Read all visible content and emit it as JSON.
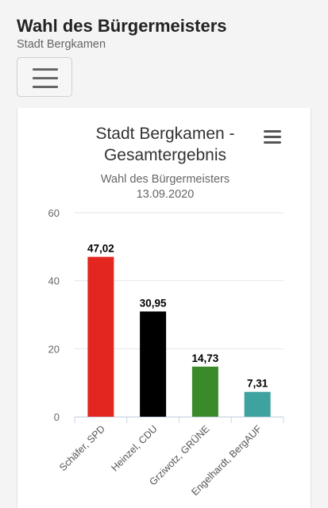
{
  "header": {
    "title": "Wahl des Bürgermeisters",
    "subtitle": "Stadt Bergkamen"
  },
  "chart_data": {
    "type": "bar",
    "title": "Stadt Bergkamen - Gesamtergebnis",
    "title_lines": [
      "Stadt Bergkamen -",
      "Gesamtergebnis"
    ],
    "subtitle_lines": [
      "Wahl des Bürgermeisters",
      "13.09.2020"
    ],
    "categories": [
      "Schäfer, SPD",
      "Heinzel, CDU",
      "Grziwotz, GRÜNE",
      "Engelhardt, BergAUF"
    ],
    "values": [
      47.02,
      30.95,
      14.73,
      7.31
    ],
    "value_labels": [
      "47,02",
      "30,95",
      "14,73",
      "7,31"
    ],
    "colors": [
      "#e3261f",
      "#000000",
      "#3b8a2a",
      "#3ea3a0"
    ],
    "ylim": [
      0,
      60
    ],
    "yticks": [
      "0",
      "20",
      "40",
      "60"
    ],
    "ytick_values": [
      0,
      20,
      40,
      60
    ],
    "grid": true,
    "legend": false
  }
}
